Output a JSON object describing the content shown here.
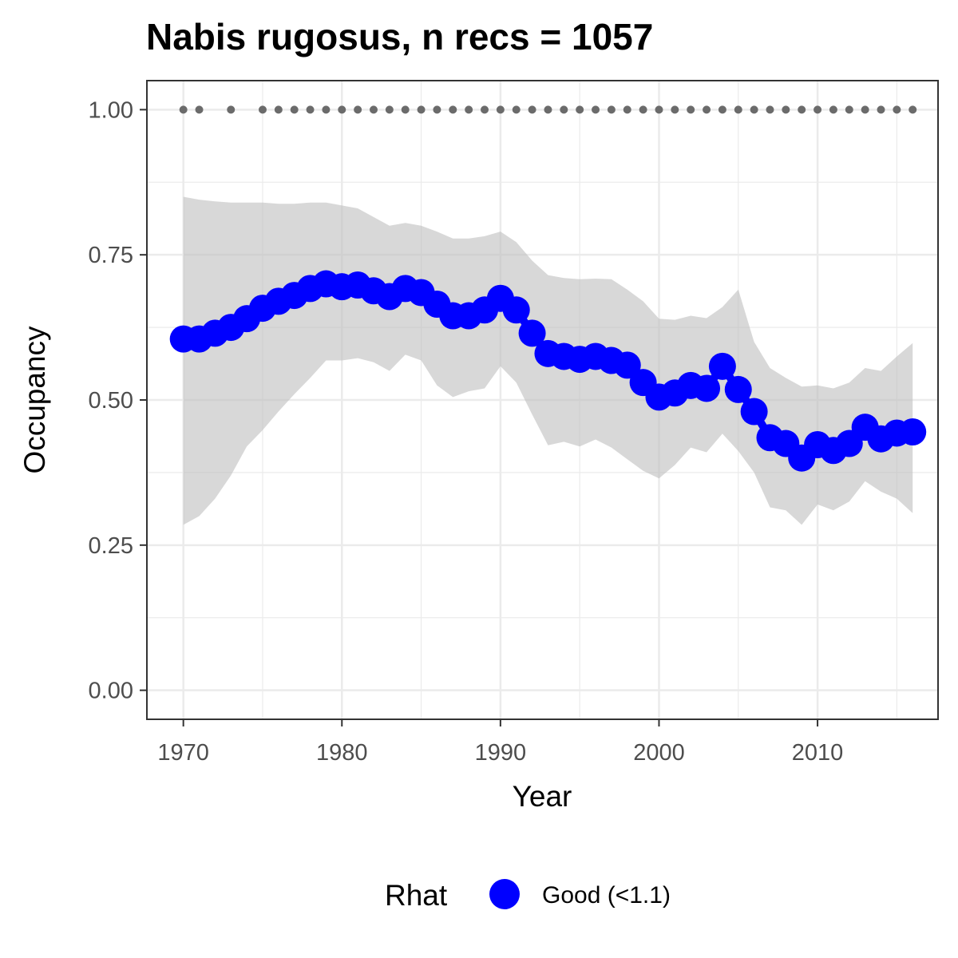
{
  "chart_data": {
    "type": "line",
    "title": "Nabis rugosus, n recs = 1057",
    "xlabel": "Year",
    "ylabel": "Occupancy",
    "xlim": [
      1967.7,
      2017.6
    ],
    "ylim": [
      -0.05,
      1.05
    ],
    "x_ticks": [
      1970,
      1980,
      1990,
      2000,
      2010
    ],
    "x_tick_labels": [
      "1970",
      "1980",
      "1990",
      "2000",
      "2010"
    ],
    "y_ticks": [
      0,
      0.25,
      0.5,
      0.75,
      1.0
    ],
    "y_tick_labels": [
      "0.00",
      "0.25",
      "0.50",
      "0.75",
      "1.00"
    ],
    "grid": true,
    "colors": {
      "line": "#0000ff",
      "ribbon": "#bebebe",
      "record_dots": "#6b6b6b",
      "panel_border": "#333333",
      "grid": "#ebebeb"
    },
    "series": [
      {
        "type": "line+points",
        "x": [
          1970,
          1971,
          1972,
          1973,
          1974,
          1975,
          1976,
          1977,
          1978,
          1979,
          1980,
          1981,
          1982,
          1983,
          1984,
          1985,
          1986,
          1987,
          1988,
          1989,
          1990,
          1991,
          1992,
          1993,
          1994,
          1995,
          1996,
          1997,
          1998,
          1999,
          2000,
          2001,
          2002,
          2003,
          2004,
          2005,
          2006,
          2007,
          2008,
          2009,
          2010,
          2011,
          2012,
          2013,
          2014,
          2015,
          2016
        ],
        "values": [
          0.605,
          0.605,
          0.615,
          0.625,
          0.64,
          0.658,
          0.67,
          0.68,
          0.692,
          0.7,
          0.695,
          0.698,
          0.688,
          0.678,
          0.692,
          0.685,
          0.665,
          0.645,
          0.645,
          0.655,
          0.675,
          0.655,
          0.615,
          0.58,
          0.575,
          0.57,
          0.575,
          0.568,
          0.56,
          0.53,
          0.505,
          0.512,
          0.525,
          0.52,
          0.558,
          0.518,
          0.48,
          0.435,
          0.425,
          0.4,
          0.423,
          0.413,
          0.425,
          0.453,
          0.433,
          0.443,
          0.445
        ],
        "upper": [
          0.85,
          0.845,
          0.842,
          0.84,
          0.84,
          0.84,
          0.838,
          0.838,
          0.84,
          0.84,
          0.835,
          0.83,
          0.815,
          0.8,
          0.805,
          0.8,
          0.79,
          0.778,
          0.778,
          0.782,
          0.79,
          0.772,
          0.74,
          0.715,
          0.71,
          0.708,
          0.709,
          0.708,
          0.69,
          0.67,
          0.64,
          0.638,
          0.645,
          0.641,
          0.66,
          0.69,
          0.6,
          0.555,
          0.538,
          0.523,
          0.525,
          0.52,
          0.53,
          0.555,
          0.55,
          0.575,
          0.598
        ]
      },
      {
        "type": "ribbon_lower",
        "x": [
          1970,
          1971,
          1972,
          1973,
          1974,
          1975,
          1976,
          1977,
          1978,
          1979,
          1980,
          1981,
          1982,
          1983,
          1984,
          1985,
          1986,
          1987,
          1988,
          1989,
          1990,
          1991,
          1992,
          1993,
          1994,
          1995,
          1996,
          1997,
          1998,
          1999,
          2000,
          2001,
          2002,
          2003,
          2004,
          2005,
          2006,
          2007,
          2008,
          2009,
          2010,
          2011,
          2012,
          2013,
          2014,
          2015,
          2016
        ],
        "values": [
          0.285,
          0.3,
          0.33,
          0.37,
          0.42,
          0.448,
          0.48,
          0.51,
          0.538,
          0.568,
          0.568,
          0.572,
          0.565,
          0.55,
          0.578,
          0.568,
          0.525,
          0.505,
          0.515,
          0.52,
          0.558,
          0.53,
          0.475,
          0.422,
          0.428,
          0.42,
          0.432,
          0.418,
          0.398,
          0.378,
          0.365,
          0.388,
          0.418,
          0.41,
          0.442,
          0.412,
          0.375,
          0.315,
          0.31,
          0.285,
          0.32,
          0.31,
          0.325,
          0.36,
          0.342,
          0.33,
          0.305
        ]
      },
      {
        "type": "record_points",
        "x": [
          1970,
          1971,
          1973,
          1975,
          1976,
          1977,
          1978,
          1979,
          1980,
          1981,
          1982,
          1983,
          1984,
          1985,
          1986,
          1987,
          1988,
          1989,
          1990,
          1991,
          1992,
          1993,
          1994,
          1995,
          1996,
          1997,
          1998,
          1999,
          2000,
          2001,
          2002,
          2003,
          2004,
          2005,
          2006,
          2007,
          2008,
          2009,
          2010,
          2011,
          2012,
          2013,
          2014,
          2015,
          2016
        ],
        "values": [
          1,
          1,
          1,
          1,
          1,
          1,
          1,
          1,
          1,
          1,
          1,
          1,
          1,
          1,
          1,
          1,
          1,
          1,
          1,
          1,
          1,
          1,
          1,
          1,
          1,
          1,
          1,
          1,
          1,
          1,
          1,
          1,
          1,
          1,
          1,
          1,
          1,
          1,
          1,
          1,
          1,
          1,
          1,
          1,
          1
        ]
      }
    ],
    "legend": {
      "position": "bottom",
      "title": "Rhat",
      "entries": [
        {
          "label": "Good (<1.1)",
          "color": "#0000ff"
        }
      ]
    }
  }
}
